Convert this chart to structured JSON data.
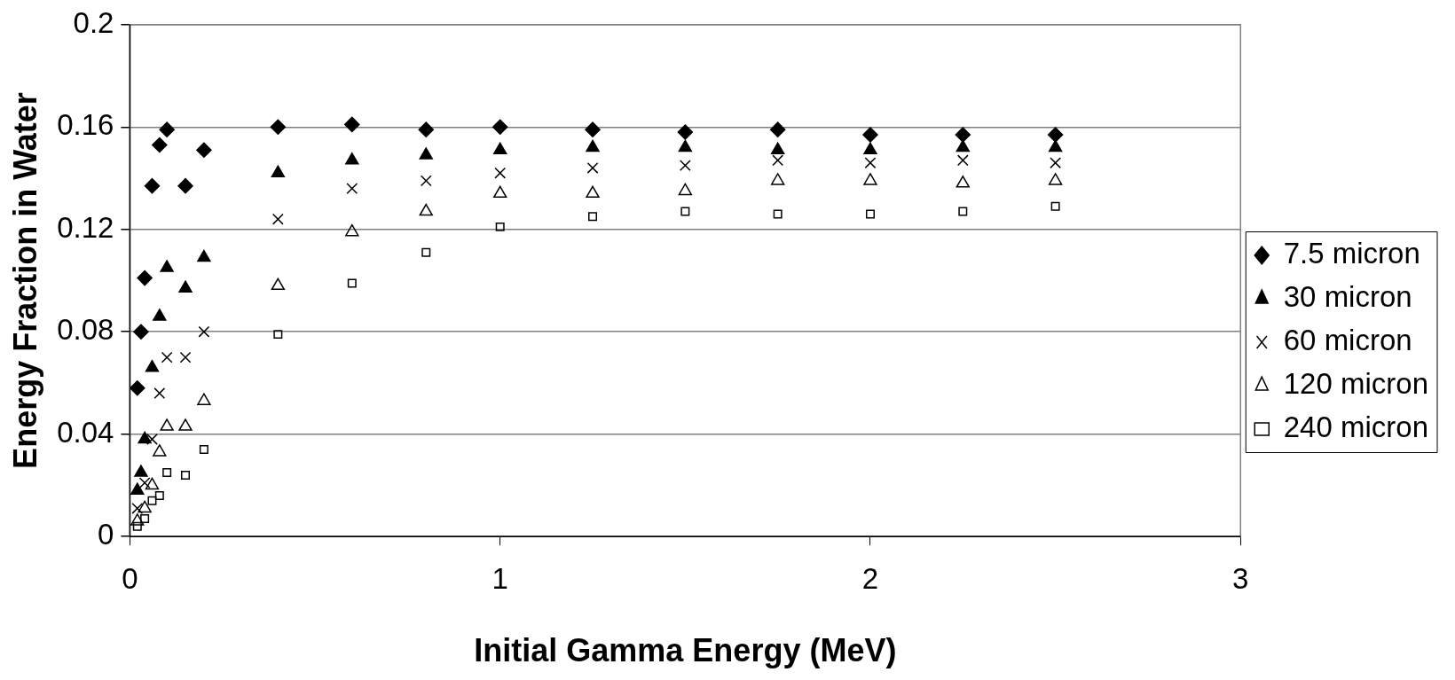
{
  "chart_data": {
    "type": "scatter",
    "xlabel": "Initial Gamma Energy (MeV)",
    "ylabel": "Energy Fraction in Water",
    "xlim": [
      0,
      3
    ],
    "xticks": [
      0,
      1,
      2,
      3
    ],
    "ylim": [
      0,
      0.2
    ],
    "yticks": [
      0,
      0.04,
      0.08,
      0.12,
      0.16,
      0.2
    ],
    "grid": "y",
    "legend": "right",
    "series": [
      {
        "name": "7.5 micron",
        "color": "#000000",
        "marker": "diamond",
        "x": [
          0.02,
          0.03,
          0.04,
          0.06,
          0.08,
          0.1,
          0.15,
          0.2,
          0.4,
          0.6,
          0.8,
          1.0,
          1.25,
          1.5,
          1.75,
          2.0,
          2.25,
          2.5
        ],
        "values": [
          0.058,
          0.08,
          0.101,
          0.137,
          0.153,
          0.159,
          0.137,
          0.151,
          0.16,
          0.161,
          0.159,
          0.16,
          0.159,
          0.158,
          0.159,
          0.157,
          0.157,
          0.157
        ]
      },
      {
        "name": "30 micron",
        "color": "#000000",
        "marker": "triangle",
        "x": [
          0.02,
          0.03,
          0.04,
          0.06,
          0.08,
          0.1,
          0.15,
          0.2,
          0.4,
          0.6,
          0.8,
          1.0,
          1.25,
          1.5,
          1.75,
          2.0,
          2.25,
          2.5
        ],
        "values": [
          0.018,
          0.025,
          0.038,
          0.066,
          0.086,
          0.105,
          0.097,
          0.109,
          0.142,
          0.147,
          0.149,
          0.151,
          0.152,
          0.152,
          0.151,
          0.151,
          0.152,
          0.152
        ]
      },
      {
        "name": "60 micron",
        "color": "#000000",
        "marker": "cross",
        "x": [
          0.02,
          0.04,
          0.06,
          0.08,
          0.1,
          0.15,
          0.2,
          0.4,
          0.6,
          0.8,
          1.0,
          1.25,
          1.5,
          1.75,
          2.0,
          2.25,
          2.5
        ],
        "values": [
          0.011,
          0.021,
          0.038,
          0.056,
          0.07,
          0.07,
          0.08,
          0.124,
          0.136,
          0.139,
          0.142,
          0.144,
          0.145,
          0.147,
          0.146,
          0.147,
          0.146
        ]
      },
      {
        "name": "120 micron",
        "color": "#000000",
        "marker": "triangle",
        "x": [
          0.02,
          0.04,
          0.06,
          0.08,
          0.1,
          0.15,
          0.2,
          0.4,
          0.6,
          0.8,
          1.0,
          1.25,
          1.5,
          1.75,
          2.0,
          2.25,
          2.5
        ],
        "values": [
          0.006,
          0.011,
          0.02,
          0.033,
          0.043,
          0.043,
          0.053,
          0.098,
          0.119,
          0.127,
          0.134,
          0.134,
          0.135,
          0.139,
          0.139,
          0.138,
          0.139
        ]
      },
      {
        "name": "240 micron",
        "color": "#000000",
        "marker": "square",
        "x": [
          0.02,
          0.04,
          0.06,
          0.08,
          0.1,
          0.15,
          0.2,
          0.4,
          0.6,
          0.8,
          1.0,
          1.25,
          1.5,
          1.75,
          2.0,
          2.25,
          2.5
        ],
        "values": [
          0.004,
          0.007,
          0.014,
          0.016,
          0.025,
          0.024,
          0.034,
          0.079,
          0.099,
          0.111,
          0.121,
          0.125,
          0.127,
          0.126,
          0.126,
          0.127,
          0.129
        ]
      }
    ]
  }
}
